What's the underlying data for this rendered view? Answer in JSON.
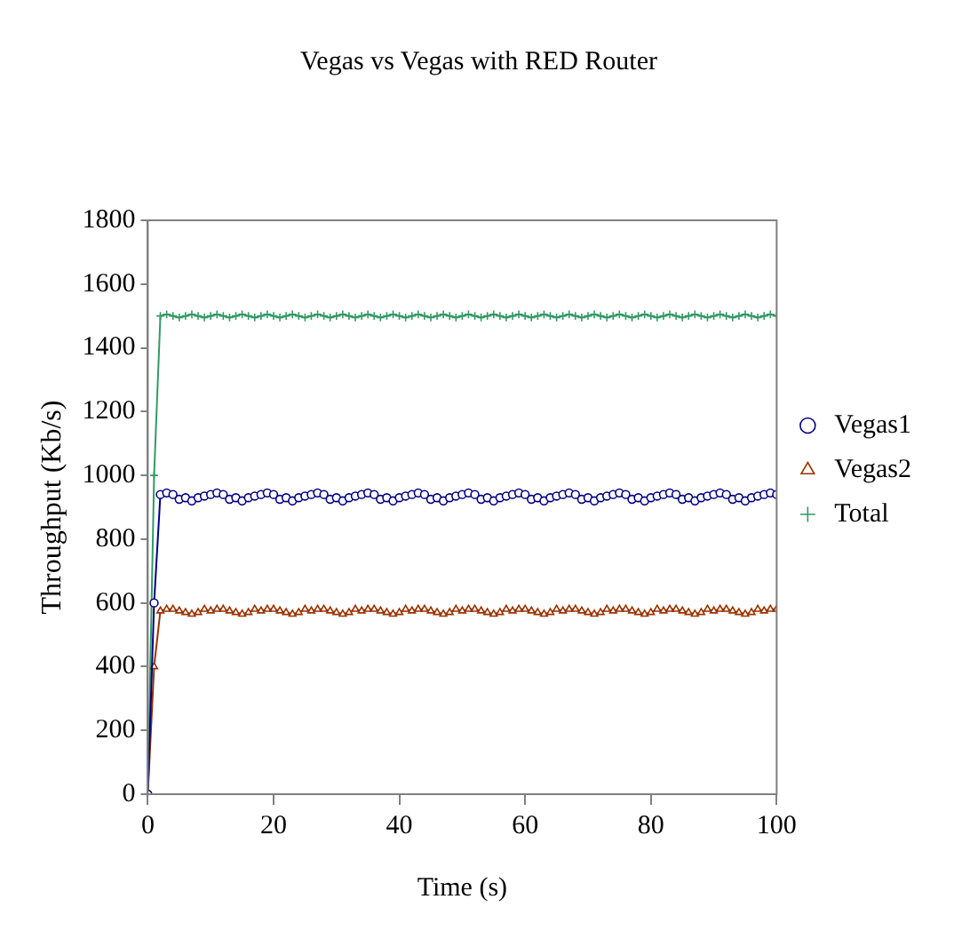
{
  "chart_data": {
    "type": "line",
    "title": "Vegas vs Vegas with RED Router",
    "xlabel": "Time (s)",
    "ylabel": "Throughput (Kb/s)",
    "x": [
      0,
      1,
      2,
      3,
      4,
      5,
      6,
      7,
      8,
      9,
      10,
      11,
      12,
      13,
      14,
      15,
      16,
      17,
      18,
      19,
      20,
      21,
      22,
      23,
      24,
      25,
      26,
      27,
      28,
      29,
      30,
      31,
      32,
      33,
      34,
      35,
      36,
      37,
      38,
      39,
      40,
      41,
      42,
      43,
      44,
      45,
      46,
      47,
      48,
      49,
      50,
      51,
      52,
      53,
      54,
      55,
      56,
      57,
      58,
      59,
      60,
      61,
      62,
      63,
      64,
      65,
      66,
      67,
      68,
      69,
      70,
      71,
      72,
      73,
      74,
      75,
      76,
      77,
      78,
      79,
      80,
      81,
      82,
      83,
      84,
      85,
      86,
      87,
      88,
      89,
      90,
      91,
      92,
      93,
      94,
      95,
      96,
      97,
      98,
      99,
      100
    ],
    "series": [
      {
        "name": "Vegas1",
        "color": "#000080",
        "marker": "circle",
        "values": [
          0,
          600,
          940,
          945,
          940,
          925,
          930,
          920,
          930,
          935,
          940,
          945,
          940,
          925,
          930,
          920,
          930,
          935,
          940,
          945,
          940,
          925,
          930,
          920,
          930,
          935,
          940,
          945,
          940,
          925,
          930,
          920,
          930,
          935,
          940,
          945,
          940,
          925,
          930,
          920,
          930,
          935,
          940,
          945,
          940,
          925,
          930,
          920,
          930,
          935,
          940,
          945,
          940,
          925,
          930,
          920,
          930,
          935,
          940,
          945,
          940,
          925,
          930,
          920,
          930,
          935,
          940,
          945,
          940,
          925,
          930,
          920,
          930,
          935,
          940,
          945,
          940,
          925,
          930,
          920,
          930,
          935,
          940,
          945,
          940,
          925,
          930,
          920,
          930,
          935,
          940,
          945,
          940,
          925,
          930,
          920,
          930,
          935,
          940,
          945,
          940
        ]
      },
      {
        "name": "Vegas2",
        "color": "#993300",
        "marker": "triangle",
        "values": [
          0,
          400,
          575,
          580,
          580,
          575,
          570,
          565,
          570,
          580,
          575,
          580,
          580,
          575,
          570,
          565,
          570,
          580,
          575,
          580,
          580,
          575,
          570,
          565,
          570,
          580,
          575,
          580,
          580,
          575,
          570,
          565,
          570,
          580,
          575,
          580,
          580,
          575,
          570,
          565,
          570,
          580,
          575,
          580,
          580,
          575,
          570,
          565,
          570,
          580,
          575,
          580,
          580,
          575,
          570,
          565,
          570,
          580,
          575,
          580,
          580,
          575,
          570,
          565,
          570,
          580,
          575,
          580,
          580,
          575,
          570,
          565,
          570,
          580,
          575,
          580,
          580,
          575,
          570,
          565,
          570,
          580,
          575,
          580,
          580,
          575,
          570,
          565,
          570,
          580,
          575,
          580,
          580,
          575,
          570,
          565,
          570,
          580,
          575,
          580,
          580
        ]
      },
      {
        "name": "Total",
        "color": "#339966",
        "marker": "cross",
        "values": [
          0,
          1000,
          1500,
          1505,
          1500,
          1495,
          1500,
          1505,
          1500,
          1495,
          1500,
          1505,
          1500,
          1495,
          1500,
          1505,
          1500,
          1495,
          1500,
          1505,
          1500,
          1495,
          1500,
          1505,
          1500,
          1495,
          1500,
          1505,
          1500,
          1495,
          1500,
          1505,
          1500,
          1495,
          1500,
          1505,
          1500,
          1495,
          1500,
          1505,
          1500,
          1495,
          1500,
          1505,
          1500,
          1495,
          1500,
          1505,
          1500,
          1495,
          1500,
          1505,
          1500,
          1495,
          1500,
          1505,
          1500,
          1495,
          1500,
          1505,
          1500,
          1495,
          1500,
          1505,
          1500,
          1495,
          1500,
          1505,
          1500,
          1495,
          1500,
          1505,
          1500,
          1495,
          1500,
          1505,
          1500,
          1495,
          1500,
          1505,
          1500,
          1495,
          1500,
          1505,
          1500,
          1495,
          1500,
          1505,
          1500,
          1495,
          1500,
          1505,
          1500,
          1495,
          1500,
          1505,
          1500,
          1495,
          1500,
          1505,
          1500
        ]
      }
    ],
    "xlim": [
      0,
      100
    ],
    "xticks": [
      0,
      20,
      40,
      60,
      80,
      100
    ],
    "ylim": [
      0,
      1800
    ],
    "yticks": [
      0,
      200,
      400,
      600,
      800,
      1000,
      1200,
      1400,
      1600,
      1800
    ],
    "grid": false,
    "legend": "right",
    "line_style": "solid"
  }
}
